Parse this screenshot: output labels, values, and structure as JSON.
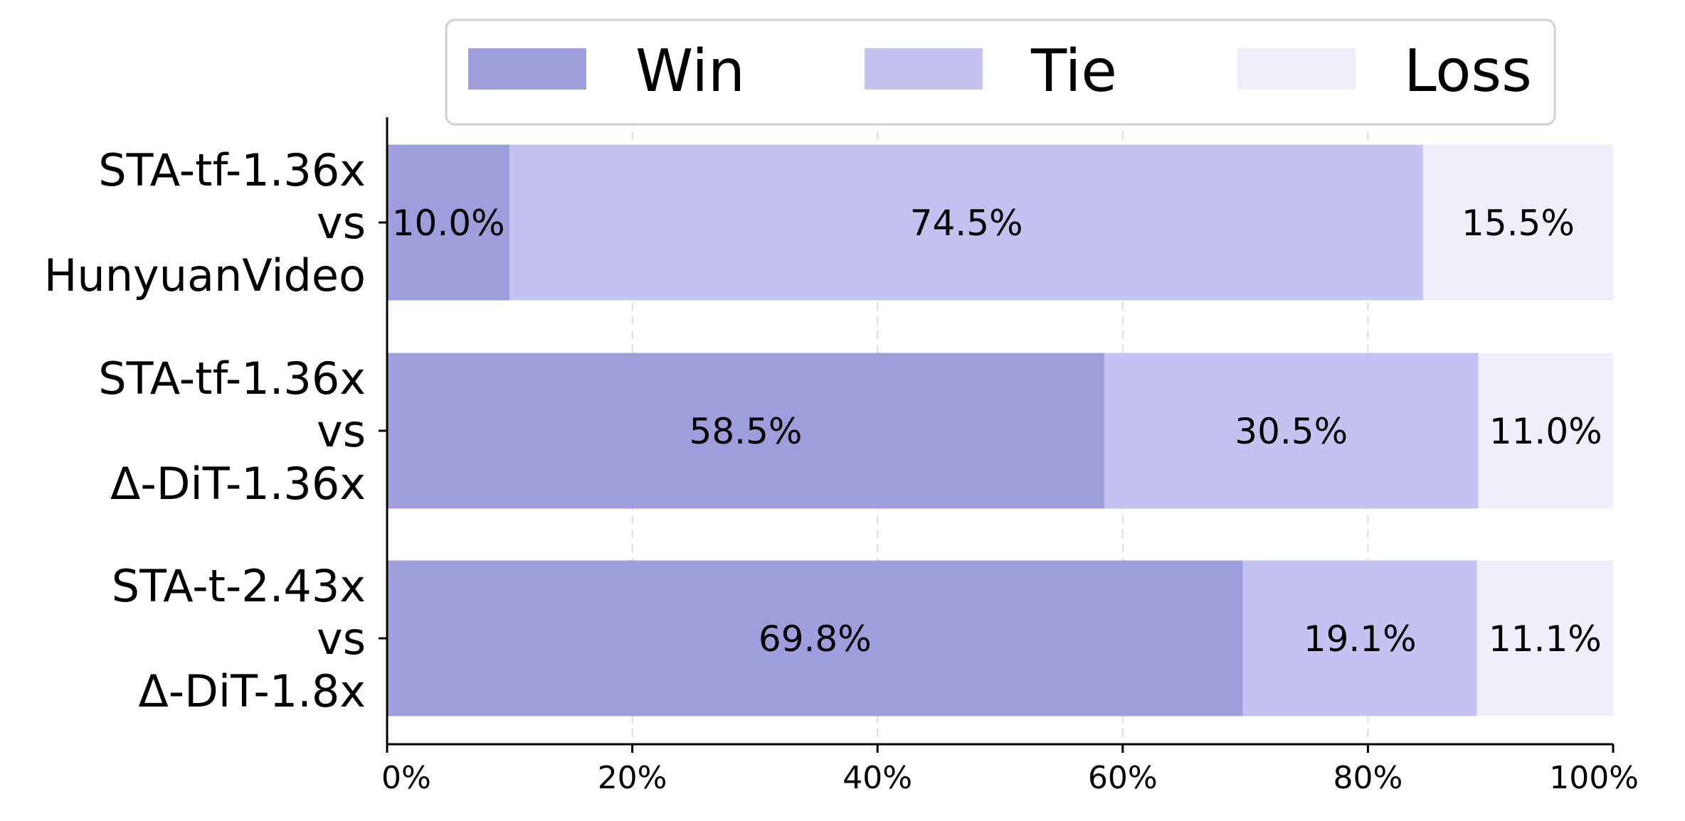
{
  "chart_data": {
    "type": "bar",
    "orientation": "horizontal",
    "stacked": true,
    "categories": [
      [
        "STA-tf-1.36x",
        "vs",
        "HunyuanVideo"
      ],
      [
        "STA-tf-1.36x",
        "vs",
        "Δ-DiT-1.36x"
      ],
      [
        "STA-t-2.43x",
        "vs",
        "Δ-DiT-1.8x"
      ]
    ],
    "series": [
      {
        "name": "Win",
        "color": "#9e9edc",
        "values": [
          10.0,
          58.5,
          69.8
        ],
        "labels": [
          "10.0%",
          "58.5%",
          "69.8%"
        ]
      },
      {
        "name": "Tie",
        "color": "#c4c2f0",
        "values": [
          74.5,
          30.5,
          19.1
        ],
        "labels": [
          "74.5%",
          "30.5%",
          "19.1%"
        ]
      },
      {
        "name": "Loss",
        "color": "#efeefa",
        "values": [
          15.5,
          11.0,
          11.1
        ],
        "labels": [
          "15.5%",
          "11.0%",
          "11.1%"
        ]
      }
    ],
    "xlim": [
      0,
      100
    ],
    "xticks": [
      0,
      20,
      40,
      60,
      80,
      100
    ],
    "xtick_labels": [
      "0%",
      "20%",
      "40%",
      "60%",
      "80%",
      "100%"
    ],
    "grid": "vertical dashed",
    "legend": {
      "position": "top-center",
      "columns": 3
    }
  }
}
